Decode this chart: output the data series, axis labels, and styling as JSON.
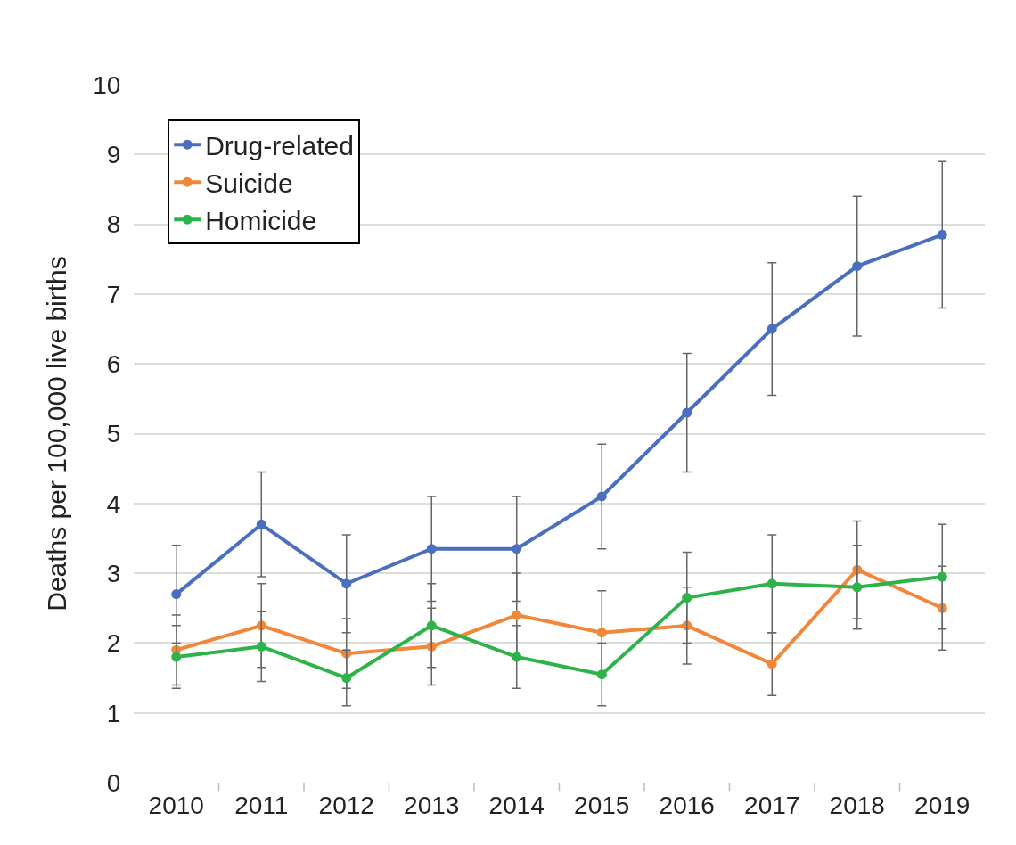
{
  "chart_data": {
    "type": "line",
    "ylabel": "Deaths per 100,000 live births",
    "categories": [
      "2010",
      "2011",
      "2012",
      "2013",
      "2014",
      "2015",
      "2016",
      "2017",
      "2018",
      "2019"
    ],
    "series": [
      {
        "name": "Drug-related",
        "color": "#4a6fbe",
        "values": [
          2.7,
          3.7,
          2.85,
          3.35,
          3.35,
          4.1,
          5.3,
          6.5,
          7.4,
          7.85
        ],
        "errors": [
          0.7,
          0.75,
          0.7,
          0.75,
          0.75,
          0.75,
          0.85,
          0.95,
          1.0,
          1.05
        ]
      },
      {
        "name": "Suicide",
        "color": "#f0873a",
        "values": [
          1.9,
          2.25,
          1.85,
          1.95,
          2.4,
          2.15,
          2.25,
          1.7,
          3.05,
          2.5
        ],
        "errors": [
          0.5,
          0.6,
          0.5,
          0.55,
          0.6,
          0.6,
          0.55,
          0.45,
          0.7,
          0.6
        ]
      },
      {
        "name": "Homicide",
        "color": "#2db34a",
        "values": [
          1.8,
          1.95,
          1.5,
          2.25,
          1.8,
          1.55,
          2.65,
          2.85,
          2.8,
          2.95
        ],
        "errors": [
          0.45,
          0.5,
          0.4,
          0.6,
          0.45,
          0.45,
          0.65,
          0.7,
          0.6,
          0.75
        ]
      }
    ],
    "ylim": [
      0,
      10
    ],
    "yticks": [
      0,
      1,
      2,
      3,
      4,
      5,
      6,
      7,
      8,
      9,
      10
    ],
    "grid": "y",
    "legend": "top left",
    "marker": "circle",
    "line_style": "solid"
  }
}
